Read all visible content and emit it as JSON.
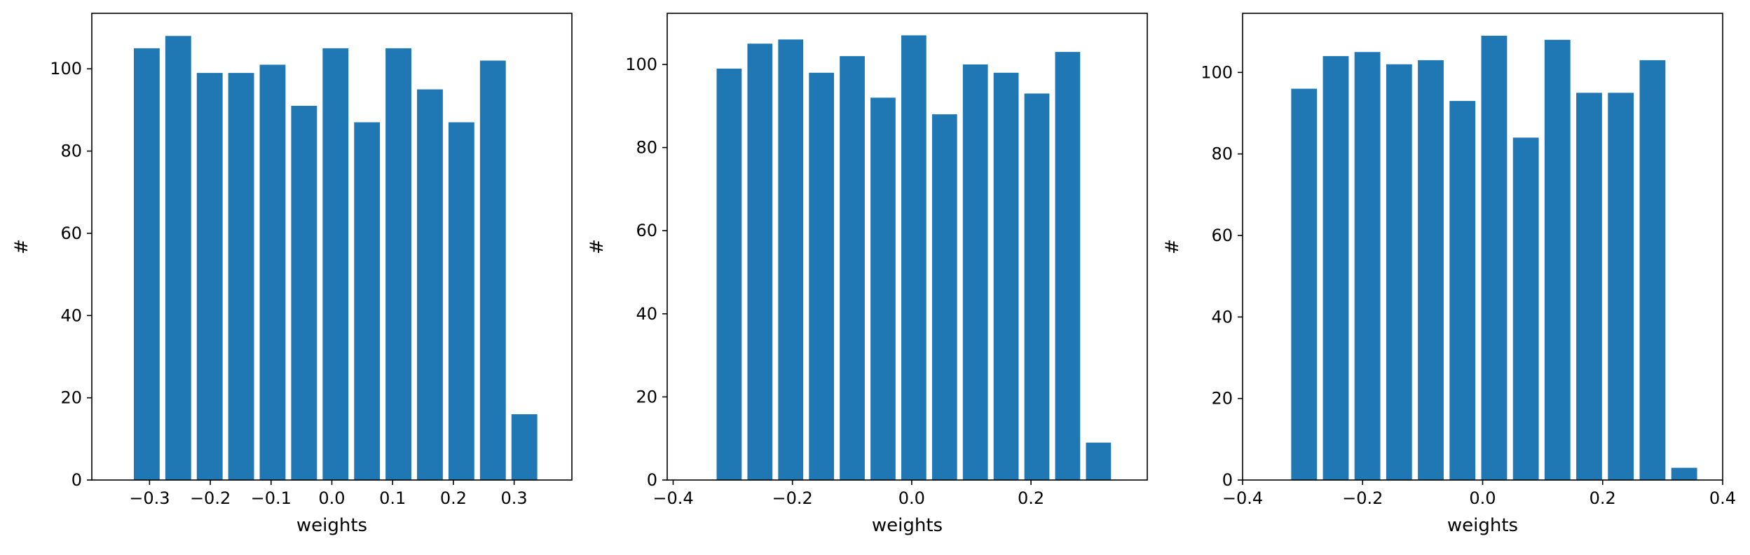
{
  "bar_color": "#1f77b4",
  "chart_data": [
    {
      "type": "bar",
      "title": "",
      "xlabel": "weights",
      "ylabel": "#",
      "xlim": [
        -0.395,
        0.395
      ],
      "ylim": [
        0,
        113.5
      ],
      "xticks": [
        -0.3,
        -0.2,
        -0.1,
        0.0,
        0.1,
        0.2,
        0.3
      ],
      "xtick_labels": [
        "−0.3",
        "−0.2",
        "−0.1",
        "0.0",
        "0.1",
        "0.2",
        "0.3"
      ],
      "yticks": [
        0,
        20,
        40,
        60,
        80,
        100
      ],
      "ytick_labels": [
        "0",
        "20",
        "40",
        "60",
        "80",
        "100"
      ],
      "x": [
        -0.3046,
        -0.2528,
        -0.201,
        -0.1493,
        -0.0975,
        -0.0457,
        0.0061,
        0.0579,
        0.1096,
        0.1614,
        0.2132,
        0.265,
        0.3168
      ],
      "bar_width": 0.0425,
      "values": [
        105,
        108,
        99,
        99,
        101,
        91,
        105,
        87,
        105,
        95,
        87,
        102,
        16
      ],
      "grid": false
    },
    {
      "type": "bar",
      "title": "",
      "xlabel": "weights",
      "ylabel": "#",
      "xlim": [
        -0.41,
        0.395
      ],
      "ylim": [
        0,
        112.3
      ],
      "xticks": [
        -0.4,
        -0.2,
        0.0,
        0.2
      ],
      "xtick_labels": [
        "−0.4",
        "−0.2",
        "0.0",
        "0.2"
      ],
      "yticks": [
        0,
        20,
        40,
        60,
        80,
        100
      ],
      "ytick_labels": [
        "0",
        "20",
        "40",
        "60",
        "80",
        "100"
      ],
      "x": [
        -0.3061,
        -0.2545,
        -0.2029,
        -0.1513,
        -0.0997,
        -0.0481,
        0.0035,
        0.0551,
        0.1067,
        0.1583,
        0.2099,
        0.2615,
        0.3132
      ],
      "bar_width": 0.042,
      "values": [
        99,
        105,
        106,
        98,
        102,
        92,
        107,
        88,
        100,
        98,
        93,
        103,
        9
      ],
      "grid": false
    },
    {
      "type": "bar",
      "title": "",
      "xlabel": "weights",
      "ylabel": "#",
      "xlim": [
        -0.4,
        0.4
      ],
      "ylim": [
        0,
        114.5
      ],
      "xticks": [
        -0.4,
        -0.2,
        0.0,
        0.2,
        0.4
      ],
      "xtick_labels": [
        "−0.4",
        "−0.2",
        "0.0",
        "0.2",
        "0.4"
      ],
      "yticks": [
        0,
        20,
        40,
        60,
        80,
        100
      ],
      "ytick_labels": [
        "0",
        "20",
        "40",
        "60",
        "80",
        "100"
      ],
      "x": [
        -0.2975,
        -0.2447,
        -0.192,
        -0.1392,
        -0.0864,
        -0.0336,
        0.0192,
        0.072,
        0.1247,
        0.1775,
        0.2303,
        0.2831,
        0.3359
      ],
      "bar_width": 0.043,
      "values": [
        96,
        104,
        105,
        102,
        103,
        93,
        109,
        84,
        108,
        95,
        95,
        103,
        3
      ],
      "grid": false
    }
  ]
}
